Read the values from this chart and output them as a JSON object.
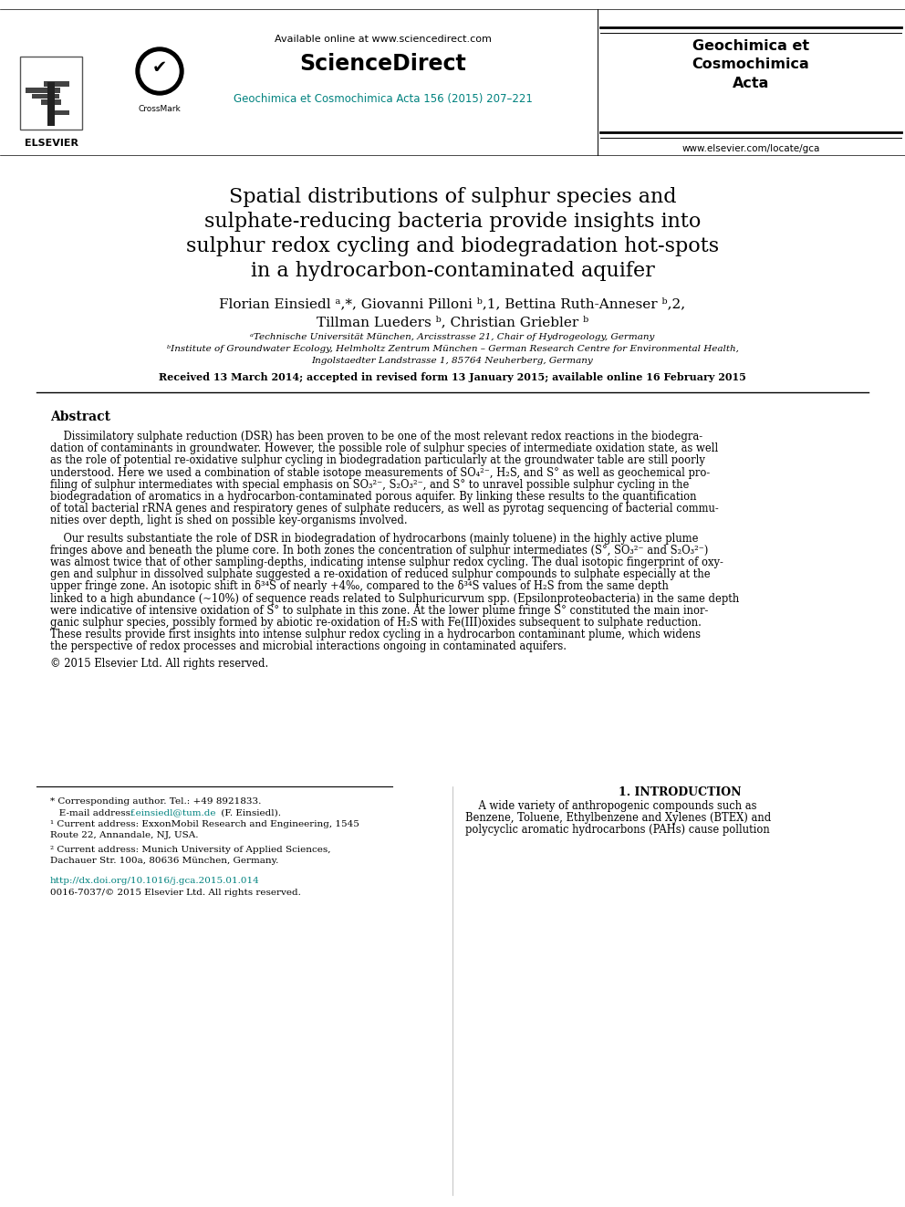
{
  "bg_color": "#ffffff",
  "title_line1": "Spatial distributions of sulphur species and",
  "title_line2": "sulphate-reducing bacteria provide insights into",
  "title_line3": "sulphur redox cycling and biodegradation hot-spots",
  "title_line4": "in a hydrocarbon-contaminated aquifer",
  "author_line1": "Florian Einsiedl ᵃ,*, Giovanni Pilloni ᵇ,1, Bettina Ruth-Anneser ᵇ,2,",
  "author_line2": "Tillman Lueders ᵇ, Christian Griebler ᵇ",
  "affil_a": "ᵃTechnische Universität München, Arcisstrasse 21, Chair of Hydrogeology, Germany",
  "affil_b1": "ᵇInstitute of Groundwater Ecology, Helmholtz Zentrum München – German Research Centre for Environmental Health,",
  "affil_b2": "Ingolstaedter Landstrasse 1, 85764 Neuherberg, Germany",
  "received": "Received 13 March 2014; accepted in revised form 13 January 2015; available online 16 February 2015",
  "abstract_title": "Abstract",
  "abs_p1_lines": [
    "    Dissimilatory sulphate reduction (DSR) has been proven to be one of the most relevant redox reactions in the biodegra-",
    "dation of contaminants in groundwater. However, the possible role of sulphur species of intermediate oxidation state, as well",
    "as the role of potential re-oxidative sulphur cycling in biodegradation particularly at the groundwater table are still poorly",
    "understood. Here we used a combination of stable isotope measurements of SO₄²⁻, H₂S, and S° as well as geochemical pro-",
    "filing of sulphur intermediates with special emphasis on SO₃²⁻, S₂O₃²⁻, and S° to unravel possible sulphur cycling in the",
    "biodegradation of aromatics in a hydrocarbon-contaminated porous aquifer. By linking these results to the quantification",
    "of total bacterial rRNA genes and respiratory genes of sulphate reducers, as well as pyrotag sequencing of bacterial commu-",
    "nities over depth, light is shed on possible key-organisms involved."
  ],
  "abs_p2_lines": [
    "    Our results substantiate the role of DSR in biodegradation of hydrocarbons (mainly toluene) in the highly active plume",
    "fringes above and beneath the plume core. In both zones the concentration of sulphur intermediates (S°, SO₃²⁻ and S₂O₃²⁻)",
    "was almost twice that of other sampling-depths, indicating intense sulphur redox cycling. The dual isotopic fingerprint of oxy-",
    "gen and sulphur in dissolved sulphate suggested a re-oxidation of reduced sulphur compounds to sulphate especially at the",
    "upper fringe zone. An isotopic shift in δ³⁴S of nearly +4‰, compared to the δ³⁴S values of H₂S from the same depth",
    "linked to a high abundance (~10%) of sequence reads related to Sulphuricurvum spp. (Epsilonproteobacteria) in the same depth",
    "were indicative of intensive oxidation of S° to sulphate in this zone. At the lower plume fringe S° constituted the main inor-",
    "ganic sulphur species, possibly formed by abiotic re-oxidation of H₂S with Fe(III)oxides subsequent to sulphate reduction.",
    "These results provide first insights into intense sulphur redox cycling in a hydrocarbon contaminant plume, which widens",
    "the perspective of redox processes and microbial interactions ongoing in contaminated aquifers."
  ],
  "copyright": "© 2015 Elsevier Ltd. All rights reserved.",
  "footer_star": "* Corresponding author. Tel.: +49 8921833.",
  "footer_email_label": "   E-mail address: ",
  "footer_email": "f.einsiedl@tum.de",
  "footer_email_suffix": " (F. Einsiedl).",
  "footer_1a": "¹ Current address: ExxonMobil Research and Engineering, 1545",
  "footer_1b": "Route 22, Annandale, NJ, USA.",
  "footer_2a": "² Current address: Munich University of Applied Sciences,",
  "footer_2b": "Dachauer Str. 100a, 80636 München, Germany.",
  "doi": "http://dx.doi.org/10.1016/j.gca.2015.01.014",
  "issn": "0016-7037/© 2015 Elsevier Ltd. All rights reserved.",
  "journal_name_top": "Geochimica et\nCosmochimica\nActa",
  "journal_url": "www.elsevier.com/locate/gca",
  "available_online": "Available online at www.sciencedirect.com",
  "sciencedirect": "ScienceDirect",
  "journal_ref": "Geochimica et Cosmochimica Acta 156 (2015) 207–221",
  "intro_heading": "1. INTRODUCTION",
  "intro_lines": [
    "    A wide variety of anthropogenic compounds such as",
    "Benzene, Toluene, Ethylbenzene and Xylenes (BTEX) and",
    "polycyclic aromatic hydrocarbons (PAHs) cause pollution"
  ],
  "teal_color": "#00827F",
  "elsevier_text": "ELSEVIER"
}
